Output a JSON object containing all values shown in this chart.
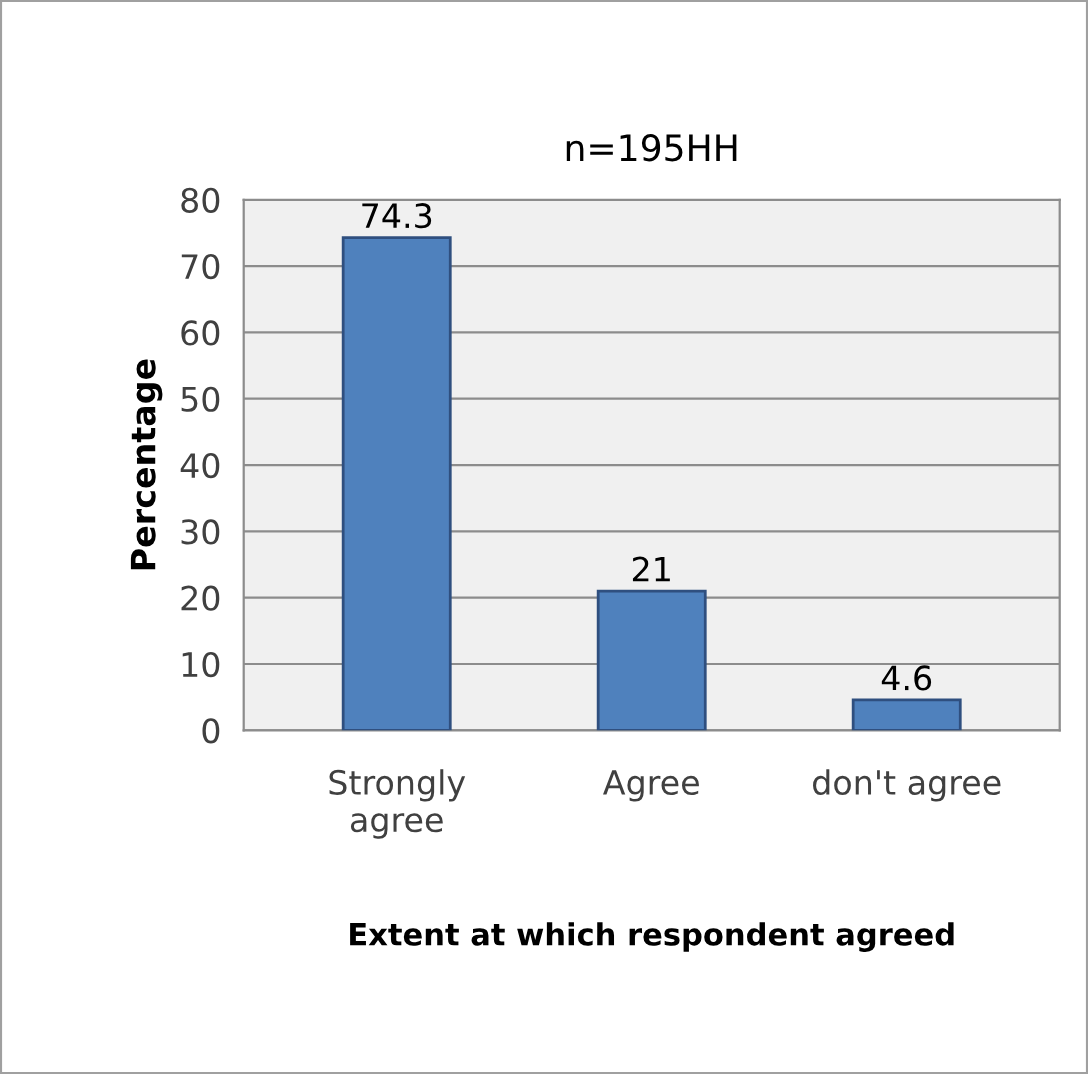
{
  "chart_data": {
    "type": "bar",
    "title": "n=195HH",
    "xlabel": "Extent at which respondent agreed",
    "ylabel": "Percentage",
    "categories": [
      "Strongly\nagree",
      "Agree",
      "don't agree"
    ],
    "values": [
      74.3,
      21,
      4.6
    ],
    "color": "#4f81bd",
    "ylim": [
      0,
      80
    ],
    "yticks": [
      0,
      10,
      20,
      30,
      40,
      50,
      60,
      70,
      80
    ],
    "grid": "y",
    "data_labels": true
  }
}
